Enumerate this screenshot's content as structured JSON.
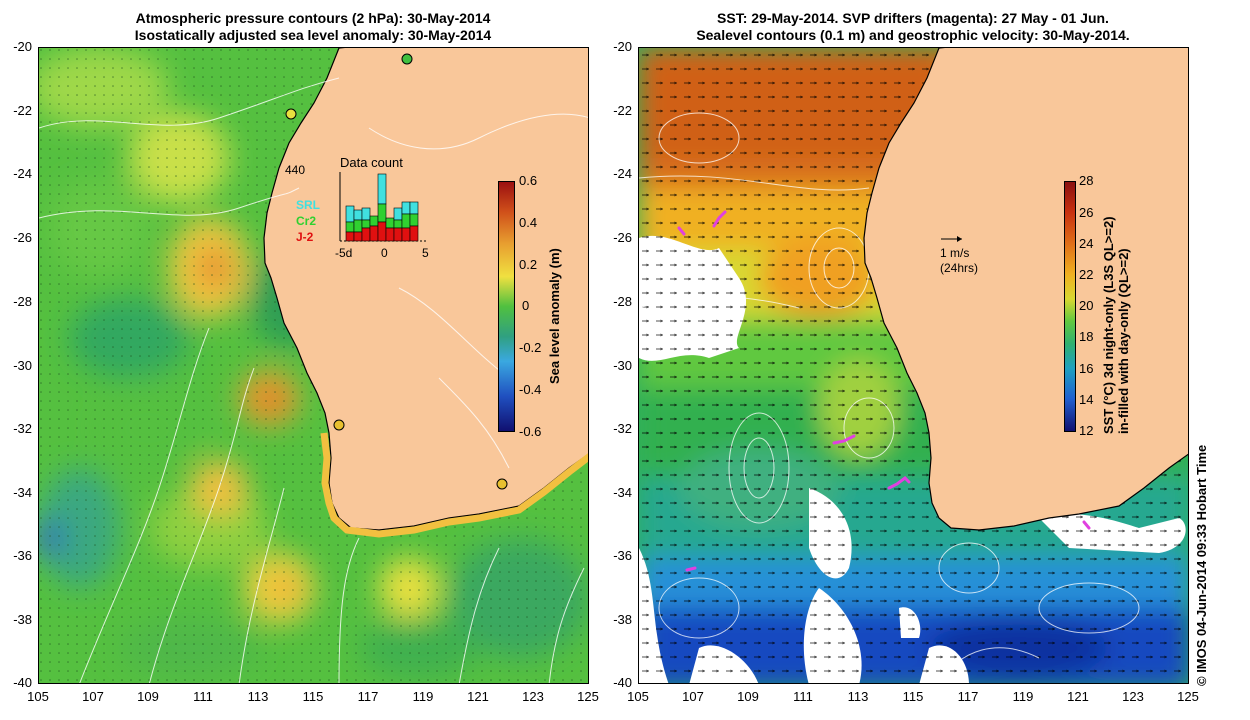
{
  "left_panel": {
    "title_line1": "Atmospheric pressure contours (2 hPa): 30-May-2014",
    "title_line2": "Isostatically adjusted sea level anomaly: 30-May-2014",
    "colorbar_label": "Sea level anomaly (m)",
    "colorbar_ticks": [
      "0.6",
      "0.4",
      "0.2",
      "0",
      "-0.2",
      "-0.4",
      "-0.6"
    ],
    "inset": {
      "count_label": "440",
      "title": "Data count",
      "sat1": "SRL",
      "sat2": "Cr2",
      "sat3": "J-2",
      "x_ticks": [
        "-5d",
        "0",
        "5"
      ]
    }
  },
  "right_panel": {
    "title_line1": "SST: 29-May-2014. SVP drifters (magenta): 27 May - 01 Jun.",
    "title_line2": "Sealevel contours (0.1 m) and geostrophic velocity: 30-May-2014.",
    "colorbar_label_line1": "SST (°C)  3d night-only (L3S QL>=2)",
    "colorbar_label_line2": "in-filled with day-only (QL>=2)",
    "colorbar_ticks": [
      "28",
      "26",
      "24",
      "22",
      "20",
      "18",
      "16",
      "14",
      "12"
    ],
    "velocity_scale": "1 m/s",
    "velocity_scale_note": "(24hrs)"
  },
  "axes": {
    "lat_ticks": [
      "-20",
      "-22",
      "-24",
      "-26",
      "-28",
      "-30",
      "-32",
      "-34",
      "-36",
      "-38",
      "-40"
    ],
    "lon_ticks": [
      "105",
      "107",
      "109",
      "111",
      "113",
      "115",
      "117",
      "119",
      "121",
      "123",
      "125"
    ]
  },
  "credit": "© IMOS 04-Jun-2014 09:33 Hobart Time",
  "colors": {
    "land": "#f9c79a",
    "ocean_green": "#4fbf3f",
    "magenta": "#e040e0"
  }
}
